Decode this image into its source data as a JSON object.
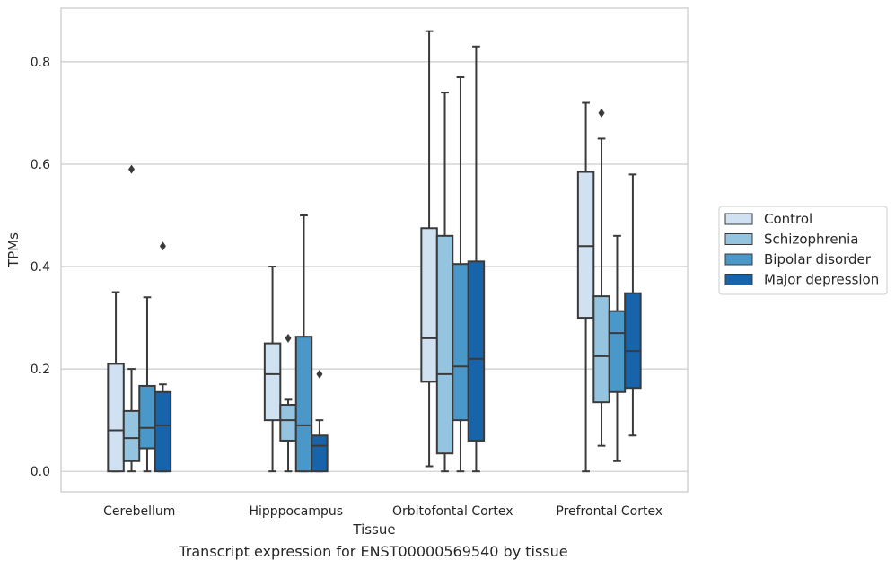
{
  "chart_data": {
    "type": "boxplot",
    "xlabel": "Tissue",
    "ylabel": "TPMs",
    "ylim": [
      -0.04,
      0.905
    ],
    "yticks": [
      0.0,
      0.2,
      0.4,
      0.6,
      0.8
    ],
    "ytick_labels": [
      "0.0",
      "0.2",
      "0.4",
      "0.6",
      "0.8"
    ],
    "grid": "horizontal",
    "legend_position": "right",
    "categories": [
      "Cerebellum",
      "Hipppocampus",
      "Orbitofontal Cortex",
      "Prefrontal Cortex"
    ],
    "series": [
      {
        "name": "Control",
        "color": "#d0e1f2",
        "boxes": [
          {
            "whislo": 0.0,
            "q1": 0.0,
            "med": 0.08,
            "q3": 0.21,
            "whishi": 0.35,
            "fliers": []
          },
          {
            "whislo": 0.0,
            "q1": 0.1,
            "med": 0.19,
            "q3": 0.25,
            "whishi": 0.4,
            "fliers": []
          },
          {
            "whislo": 0.01,
            "q1": 0.175,
            "med": 0.26,
            "q3": 0.475,
            "whishi": 0.86,
            "fliers": []
          },
          {
            "whislo": 0.0,
            "q1": 0.3,
            "med": 0.44,
            "q3": 0.585,
            "whishi": 0.72,
            "fliers": []
          }
        ]
      },
      {
        "name": "Schizophrenia",
        "color": "#94c4df",
        "boxes": [
          {
            "whislo": 0.0,
            "q1": 0.02,
            "med": 0.065,
            "q3": 0.118,
            "whishi": 0.2,
            "fliers": [
              0.59
            ]
          },
          {
            "whislo": 0.0,
            "q1": 0.06,
            "med": 0.1,
            "q3": 0.13,
            "whishi": 0.14,
            "fliers": [
              0.26
            ]
          },
          {
            "whislo": 0.0,
            "q1": 0.035,
            "med": 0.19,
            "q3": 0.46,
            "whishi": 0.74,
            "fliers": []
          },
          {
            "whislo": 0.05,
            "q1": 0.135,
            "med": 0.225,
            "q3": 0.342,
            "whishi": 0.65,
            "fliers": [
              0.7
            ]
          }
        ]
      },
      {
        "name": "Bipolar disorder",
        "color": "#4a98c9",
        "boxes": [
          {
            "whislo": 0.0,
            "q1": 0.045,
            "med": 0.085,
            "q3": 0.167,
            "whishi": 0.34,
            "fliers": []
          },
          {
            "whislo": 0.0,
            "q1": 0.0,
            "med": 0.09,
            "q3": 0.263,
            "whishi": 0.5,
            "fliers": []
          },
          {
            "whislo": 0.0,
            "q1": 0.1,
            "med": 0.205,
            "q3": 0.405,
            "whishi": 0.77,
            "fliers": []
          },
          {
            "whislo": 0.02,
            "q1": 0.155,
            "med": 0.27,
            "q3": 0.313,
            "whishi": 0.46,
            "fliers": []
          }
        ]
      },
      {
        "name": "Major depression",
        "color": "#1764ab",
        "boxes": [
          {
            "whislo": 0.0,
            "q1": 0.0,
            "med": 0.09,
            "q3": 0.155,
            "whishi": 0.17,
            "fliers": [
              0.44
            ]
          },
          {
            "whislo": 0.0,
            "q1": 0.0,
            "med": 0.05,
            "q3": 0.07,
            "whishi": 0.1,
            "fliers": [
              0.19
            ]
          },
          {
            "whislo": 0.0,
            "q1": 0.06,
            "med": 0.22,
            "q3": 0.41,
            "whishi": 0.83,
            "fliers": []
          },
          {
            "whislo": 0.07,
            "q1": 0.163,
            "med": 0.235,
            "q3": 0.348,
            "whishi": 0.58,
            "fliers": []
          }
        ]
      }
    ]
  },
  "caption": "Transcript expression for ENST00000569540 by tissue"
}
